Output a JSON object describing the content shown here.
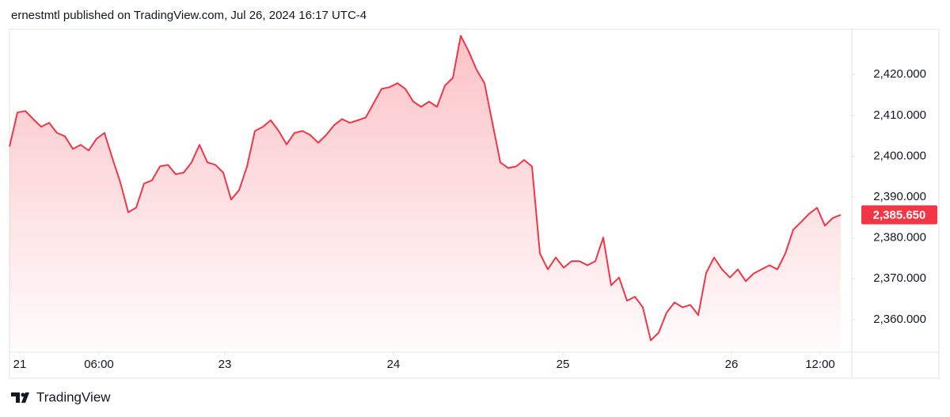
{
  "header": {
    "text": "ernestmtl published on TradingView.com, Jul 26, 2024 16:17 UTC-4"
  },
  "footer": {
    "brand": "TradingView"
  },
  "chart_data": {
    "type": "area",
    "color": "#f23645",
    "values": [
      2402.4,
      2410.7,
      2411.1,
      2409.1,
      2407.2,
      2408.2,
      2405.7,
      2404.9,
      2401.8,
      2402.8,
      2401.4,
      2404.3,
      2405.7,
      2399.5,
      2393.6,
      2386.3,
      2387.4,
      2393.3,
      2394.1,
      2397.5,
      2397.9,
      2395.6,
      2396.0,
      2398.5,
      2402.8,
      2398.5,
      2397.9,
      2396.0,
      2389.4,
      2391.7,
      2397.5,
      2406.2,
      2407.2,
      2408.8,
      2406.2,
      2402.9,
      2405.7,
      2406.2,
      2405.2,
      2403.3,
      2405.2,
      2407.6,
      2409.1,
      2408.2,
      2408.8,
      2409.5,
      2413.0,
      2416.5,
      2416.9,
      2417.9,
      2416.5,
      2413.4,
      2412.1,
      2413.4,
      2412.1,
      2417.3,
      2419.2,
      2429.5,
      2425.7,
      2421.2,
      2417.9,
      2408.2,
      2398.5,
      2397.1,
      2397.5,
      2399.1,
      2397.5,
      2376.2,
      2372.3,
      2375.2,
      2372.7,
      2374.3,
      2374.3,
      2373.3,
      2374.3,
      2380.1,
      2368.4,
      2370.3,
      2364.6,
      2365.6,
      2363.0,
      2354.9,
      2356.8,
      2361.7,
      2364.2,
      2363.0,
      2363.6,
      2361.1,
      2371.4,
      2375.2,
      2372.3,
      2370.3,
      2372.3,
      2369.4,
      2371.3,
      2372.3,
      2373.3,
      2372.3,
      2376.2,
      2382.0,
      2383.9,
      2385.9,
      2387.4,
      2383.0,
      2384.9,
      2385.65
    ],
    "current_price": {
      "value": 2385.65,
      "label": "2,385.650"
    },
    "xlim": [
      0,
      106
    ],
    "xticks": [
      {
        "value": 1.3,
        "label": "21"
      },
      {
        "value": 11.3,
        "label": "06:00"
      },
      {
        "value": 27.2,
        "label": "23"
      },
      {
        "value": 48.5,
        "label": "24"
      },
      {
        "value": 69.9,
        "label": "25"
      },
      {
        "value": 91.2,
        "label": "26"
      },
      {
        "value": 102.4,
        "label": "12:00"
      }
    ],
    "ylim": [
      2353.0,
      2430.9
    ],
    "yticks": [
      {
        "value": 2360,
        "label": "2,360.000"
      },
      {
        "value": 2370,
        "label": "2,370.000"
      },
      {
        "value": 2380,
        "label": "2,380.000"
      },
      {
        "value": 2390,
        "label": "2,390.000"
      },
      {
        "value": 2400,
        "label": "2,400.000"
      },
      {
        "value": 2410,
        "label": "2,410.000"
      },
      {
        "value": 2420,
        "label": "2,420.000"
      }
    ]
  }
}
